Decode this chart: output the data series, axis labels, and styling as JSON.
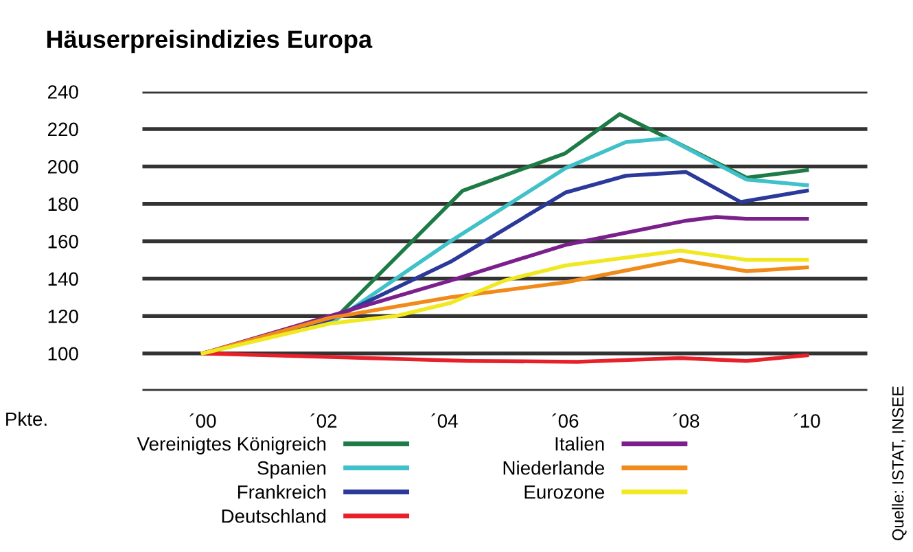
{
  "chart_data": {
    "type": "line",
    "title": "Häuserpreisindizies Europa",
    "ylabel": "Pkte.",
    "annotations": [
      "Quelle: ISTAT, INSEE"
    ],
    "xlim": [
      -1,
      11
    ],
    "xticks": [
      {
        "value": 0,
        "label": "´00"
      },
      {
        "value": 2,
        "label": "´02"
      },
      {
        "value": 4,
        "label": "´04"
      },
      {
        "value": 6,
        "label": "´06"
      },
      {
        "value": 8,
        "label": "´08"
      },
      {
        "value": 10,
        "label": "´10"
      }
    ],
    "ylim": [
      80,
      240
    ],
    "yticks": [
      {
        "value": 80,
        "label": null
      },
      100,
      120,
      140,
      160,
      180,
      200,
      220,
      240
    ],
    "grid": "y",
    "legend": "bottom",
    "marker": "none",
    "line_style": "solid",
    "series": [
      {
        "name": "Vereinigtes Königreich",
        "color": "#1e7b45",
        "x": [
          0,
          2.2,
          4.3,
          6,
          6.9,
          9,
          10
        ],
        "values": [
          100,
          119,
          187,
          207,
          228,
          194,
          198
        ]
      },
      {
        "name": "Spanien",
        "color": "#40c0c8",
        "x": [
          0,
          2.2,
          4.1,
          6,
          7,
          7.7,
          9,
          10
        ],
        "values": [
          100,
          118,
          160,
          199,
          213,
          215,
          193,
          190
        ]
      },
      {
        "name": "Frankreich",
        "color": "#2b3a9a",
        "x": [
          0,
          2.1,
          4.1,
          6,
          7,
          8,
          8.9,
          10
        ],
        "values": [
          100,
          118,
          149,
          186,
          195,
          197,
          181,
          187
        ]
      },
      {
        "name": "Deutschland",
        "color": "#e8202a",
        "x": [
          0,
          4.4,
          6.2,
          7.9,
          9,
          10
        ],
        "values": [
          100,
          96,
          95.5,
          97.5,
          96,
          99
        ]
      },
      {
        "name": "Italien",
        "color": "#7b1f8c",
        "x": [
          0,
          2.1,
          4.1,
          6,
          8,
          8.5,
          9,
          10
        ],
        "values": [
          100,
          120,
          139,
          158,
          171,
          173,
          172,
          172
        ]
      },
      {
        "name": "Niederlande",
        "color": "#f08a1a",
        "x": [
          0,
          2.1,
          4.1,
          6,
          7.9,
          9,
          10
        ],
        "values": [
          100,
          119,
          130,
          138,
          150,
          144,
          146
        ]
      },
      {
        "name": "Eurozone",
        "color": "#f0e820",
        "x": [
          0,
          2.1,
          3.2,
          4.1,
          5,
          6,
          7.9,
          9,
          10
        ],
        "values": [
          100,
          116,
          120,
          127,
          139,
          147,
          155,
          150,
          150
        ]
      }
    ]
  }
}
